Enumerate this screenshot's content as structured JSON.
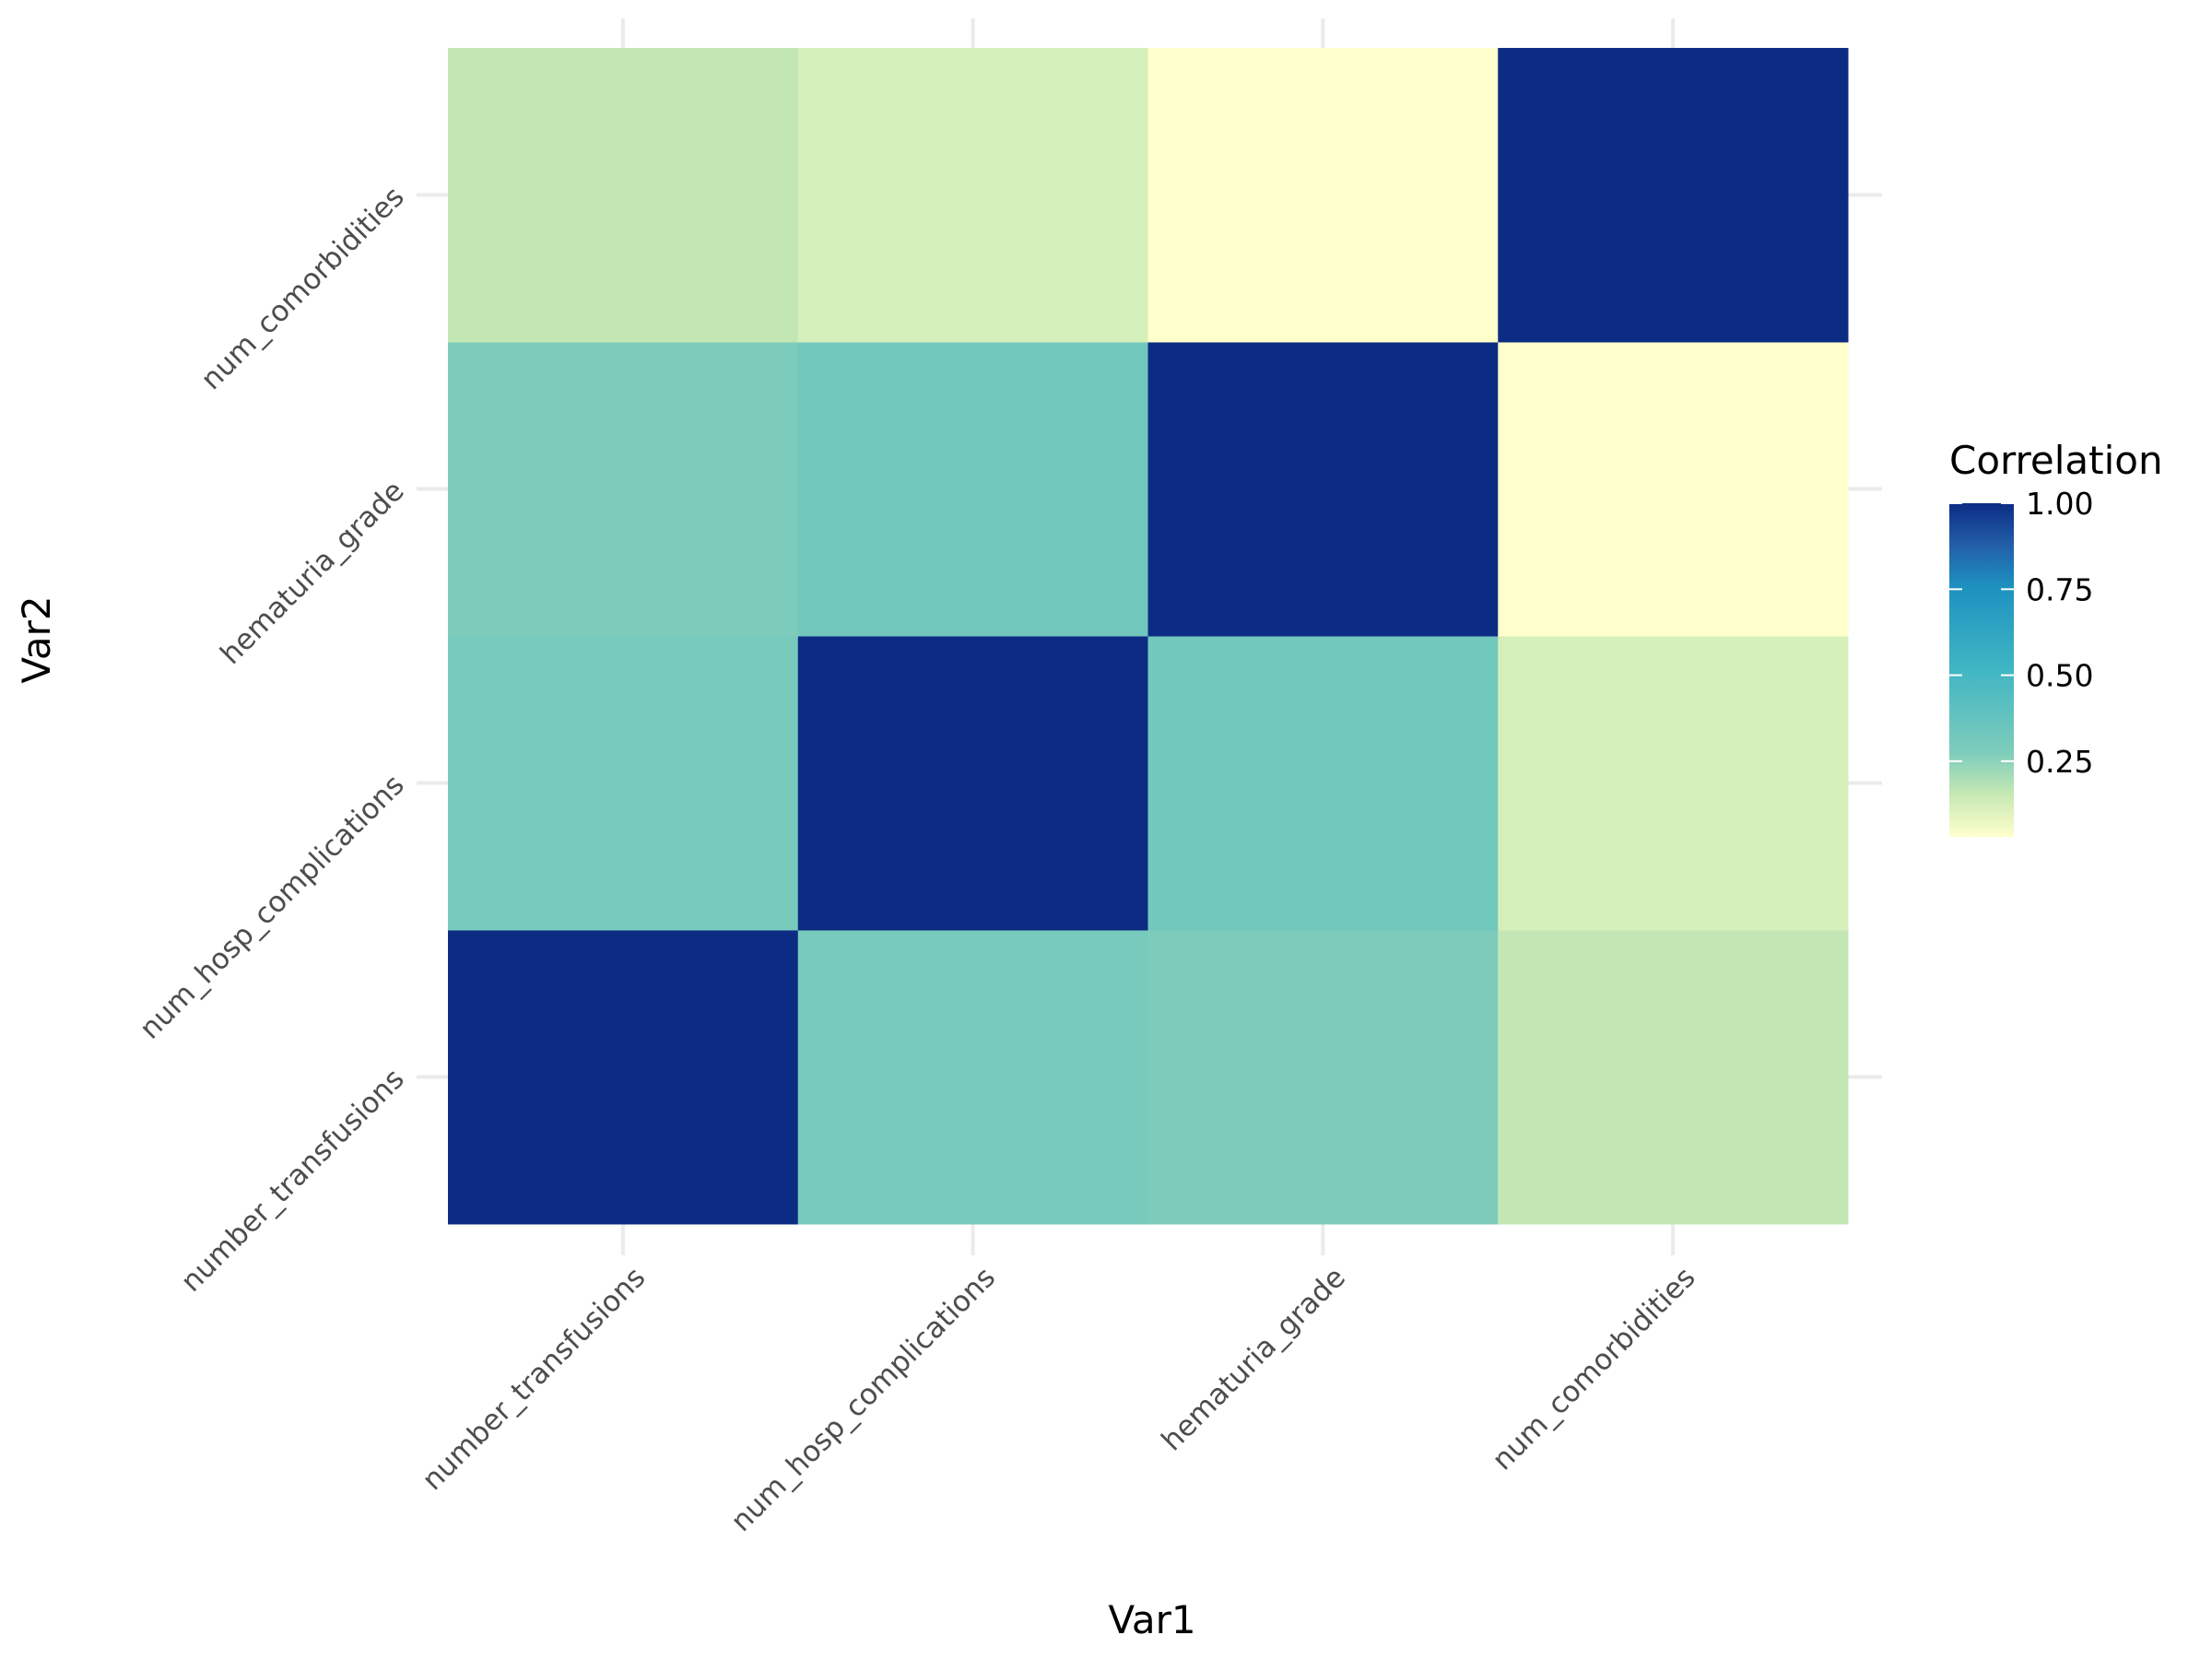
{
  "chart_data": {
    "type": "heatmap",
    "x_categories": [
      "number_transfusions",
      "num_hosp_complications",
      "hematuria_grade",
      "num_comorbidities"
    ],
    "y_categories": [
      "number_transfusions",
      "num_hosp_complications",
      "hematuria_grade",
      "num_comorbidities"
    ],
    "values": [
      [
        1.0,
        0.3,
        0.28,
        0.16
      ],
      [
        0.3,
        1.0,
        0.32,
        0.12
      ],
      [
        0.28,
        0.32,
        1.0,
        0.03
      ],
      [
        0.16,
        0.12,
        0.03,
        1.0
      ]
    ],
    "values_layout": "values[y_index][x_index]",
    "xlabel": "Var1",
    "ylabel": "Var2",
    "legend": {
      "title": "Correlation",
      "placement": "right",
      "range": [
        0.03,
        1.0
      ],
      "ticks": [
        1.0,
        0.75,
        0.5,
        0.25
      ],
      "tick_labels": [
        "1.00",
        "0.75",
        "0.50",
        "0.25"
      ]
    },
    "color_scale": {
      "name": "YlGnBu",
      "stops": [
        [
          0.0,
          "#ffffcc"
        ],
        [
          0.125,
          "#c7e9b4"
        ],
        [
          0.25,
          "#7fcdbb"
        ],
        [
          0.5,
          "#41b6c4"
        ],
        [
          0.75,
          "#1d91c0"
        ],
        [
          0.875,
          "#225ea8"
        ],
        [
          1.0,
          "#0c2c84"
        ]
      ]
    },
    "grid": true,
    "grid_color": "#ebebeb"
  }
}
